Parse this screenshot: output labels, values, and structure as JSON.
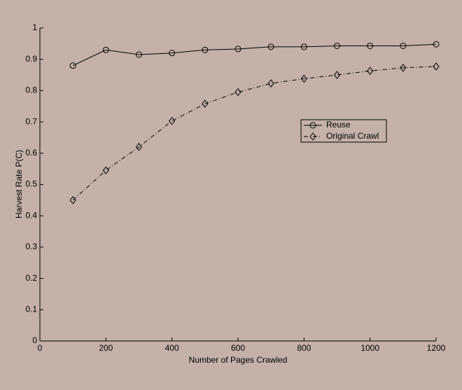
{
  "chart_data": {
    "type": "line",
    "xlabel": "Number of Pages Crawled",
    "ylabel": "Harvest Rate P(C)",
    "x": [
      100,
      200,
      300,
      400,
      500,
      600,
      700,
      800,
      900,
      1000,
      1100,
      1200
    ],
    "series": [
      {
        "name": "Reuse",
        "color": "#000000",
        "marker": "circle",
        "line_style": "solid",
        "values": [
          0.88,
          0.93,
          0.915,
          0.92,
          0.93,
          0.933,
          0.94,
          0.94,
          0.943,
          0.943,
          0.943,
          0.948
        ]
      },
      {
        "name": "Original Crawl",
        "color": "#000000",
        "marker": "diamond",
        "line_style": "dashdot",
        "values": [
          0.45,
          0.545,
          0.62,
          0.703,
          0.758,
          0.795,
          0.823,
          0.838,
          0.85,
          0.863,
          0.873,
          0.877
        ]
      }
    ],
    "xlim": [
      0,
      1200
    ],
    "xticks": [
      0,
      200,
      400,
      600,
      800,
      1000,
      1200
    ],
    "ylim": [
      0,
      1
    ],
    "yticks": [
      0,
      0.1,
      0.2,
      0.3,
      0.4,
      0.5,
      0.6,
      0.7,
      0.8,
      0.9,
      1
    ],
    "legend": "east"
  }
}
